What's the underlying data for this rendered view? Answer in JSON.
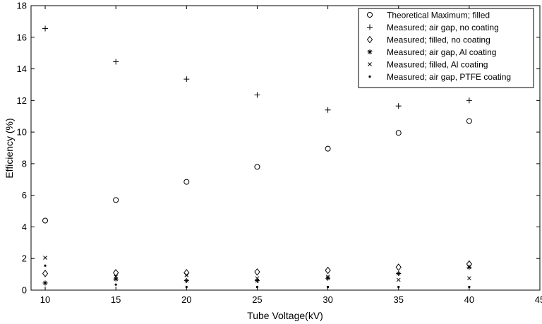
{
  "chart_data": {
    "type": "scatter",
    "xlabel": "Tube Voltage(kV)",
    "ylabel": "Efficiency (%)",
    "xlim": [
      9,
      45
    ],
    "ylim": [
      0,
      18
    ],
    "xticks": [
      10,
      15,
      20,
      25,
      30,
      35,
      40,
      45
    ],
    "yticks": [
      0,
      2,
      4,
      6,
      8,
      10,
      12,
      14,
      16,
      18
    ],
    "grid": false,
    "legend_position": "top-right",
    "series": [
      {
        "name": "Theoretical Maximum; filled",
        "marker": "circle",
        "x": [
          10,
          15,
          20,
          25,
          30,
          35,
          40
        ],
        "y": [
          4.4,
          5.7,
          6.85,
          7.8,
          8.95,
          9.95,
          10.7
        ]
      },
      {
        "name": "Measured; air gap, no coating",
        "marker": "plus",
        "x": [
          10,
          15,
          20,
          25,
          30,
          35,
          40
        ],
        "y": [
          16.55,
          14.45,
          13.35,
          12.35,
          11.4,
          11.65,
          12.0
        ]
      },
      {
        "name": "Measured; filled, no coating",
        "marker": "diamond",
        "x": [
          10,
          15,
          20,
          25,
          30,
          35,
          40
        ],
        "y": [
          1.05,
          1.1,
          1.1,
          1.15,
          1.25,
          1.45,
          1.65
        ]
      },
      {
        "name": "Measured; air gap, Al coating",
        "marker": "asterisk",
        "x": [
          10,
          15,
          20,
          25,
          30,
          35,
          40
        ],
        "y": [
          0.45,
          0.7,
          0.6,
          0.6,
          0.75,
          1.05,
          1.45
        ]
      },
      {
        "name": "Measured; filled, Al coating",
        "marker": "x",
        "x": [
          10,
          15,
          20,
          25,
          30,
          35,
          40
        ],
        "y": [
          2.05,
          0.85,
          0.95,
          0.75,
          0.85,
          0.65,
          0.75
        ]
      },
      {
        "name": "Measured; air gap, PTFE coating",
        "marker": "dot",
        "x": [
          10,
          15,
          20,
          25,
          30,
          35,
          40
        ],
        "y": [
          1.55,
          0.35,
          0.2,
          0.2,
          0.2,
          0.2,
          0.2
        ]
      }
    ]
  }
}
